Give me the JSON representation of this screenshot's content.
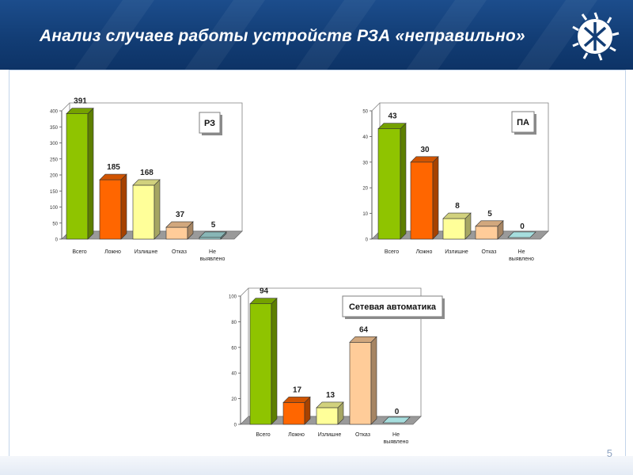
{
  "slide": {
    "title": "Анализ случаев работы устройств РЗА «неправильно»",
    "page_number": "5"
  },
  "colors": {
    "header": "#123d75",
    "vsego": "#8fc400",
    "lozhno": "#ff6600",
    "izlishne": "#ffff99",
    "otkaz": "#ffcc99",
    "ne_vyyavleno": "#a6dede"
  },
  "chart_data": [
    {
      "type": "bar",
      "title": "РЗ",
      "categories": [
        "Всего",
        "Ложно",
        "Излишне",
        "Отказ",
        "Не выявлено"
      ],
      "values": [
        391,
        185,
        168,
        37,
        5
      ],
      "ylim": [
        0,
        400
      ],
      "yticks": [
        "0",
        "50",
        "100",
        "150",
        "200",
        "250",
        "300",
        "350",
        "400"
      ]
    },
    {
      "type": "bar",
      "title": "ПА",
      "categories": [
        "Всего",
        "Ложно",
        "Излишне",
        "Отказ",
        "Не выявлено"
      ],
      "values": [
        43,
        30,
        8,
        5,
        0
      ],
      "ylim": [
        0,
        50
      ],
      "yticks": [
        "0",
        "10",
        "20",
        "30",
        "40",
        "50"
      ]
    },
    {
      "type": "bar",
      "title": "Сетевая автоматика",
      "categories": [
        "Всего",
        "Ложно",
        "Излишне",
        "Отказ",
        "Не выявлено"
      ],
      "values": [
        94,
        17,
        13,
        64,
        0
      ],
      "ylim": [
        0,
        100
      ],
      "yticks": [
        "0",
        "20",
        "40",
        "60",
        "80",
        "100"
      ]
    }
  ]
}
